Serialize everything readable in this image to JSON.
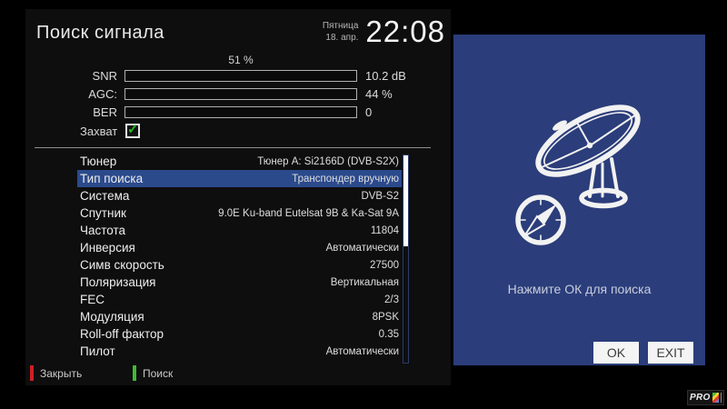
{
  "header": {
    "title": "Поиск сигнала",
    "weekday": "Пятница",
    "date": "18. апр.",
    "time": "22:08"
  },
  "signal": {
    "progress_label": "51 %",
    "bars": [
      {
        "label": "SNR",
        "value": "10.2 dB",
        "percent": 51
      },
      {
        "label": "AGC:",
        "value": "44 %",
        "percent": 44
      },
      {
        "label": "BER",
        "value": "0",
        "percent": 0
      }
    ],
    "lock_label": "Захват",
    "lock_checked": true,
    "check_glyph": "✓"
  },
  "settings": {
    "rows": [
      {
        "label": "Тюнер",
        "value": "Тюнер A: Si2166D (DVB-S2X)",
        "selected": false
      },
      {
        "label": "Тип поиска",
        "value": "Транспондер вручную",
        "selected": true
      },
      {
        "label": "Система",
        "value": "DVB-S2",
        "selected": false
      },
      {
        "label": "Спутник",
        "value": "9.0E Ku-band Eutelsat 9B & Ka-Sat 9A",
        "selected": false
      },
      {
        "label": "Частота",
        "value": "11804",
        "selected": false
      },
      {
        "label": "Инверсия",
        "value": "Автоматически",
        "selected": false
      },
      {
        "label": "Симв скорость",
        "value": "27500",
        "selected": false
      },
      {
        "label": "Поляризация",
        "value": "Вертикальная",
        "selected": false
      },
      {
        "label": "FEC",
        "value": "2/3",
        "selected": false
      },
      {
        "label": "Модуляция",
        "value": "8PSK",
        "selected": false
      },
      {
        "label": "Roll-off фактор",
        "value": "0.35",
        "selected": false
      },
      {
        "label": "Пилот",
        "value": "Автоматически",
        "selected": false
      }
    ],
    "scroll_percent": 44
  },
  "footer": {
    "close_label": "Закрыть",
    "search_label": "Поиск"
  },
  "right_panel": {
    "hint": "Нажмите ОК для поиска",
    "ok_label": "OK",
    "exit_label": "EXIT"
  },
  "logo": {
    "text": "PRO"
  },
  "colors": {
    "panel_dark": "#0e0e0e",
    "panel_blue": "#2b3d7a",
    "row_highlight": "#2b4a8c",
    "bar_fill": "#2c3e7e",
    "hint_red": "#cc2026",
    "hint_green": "#3dbb35",
    "check_green": "#28b524"
  }
}
